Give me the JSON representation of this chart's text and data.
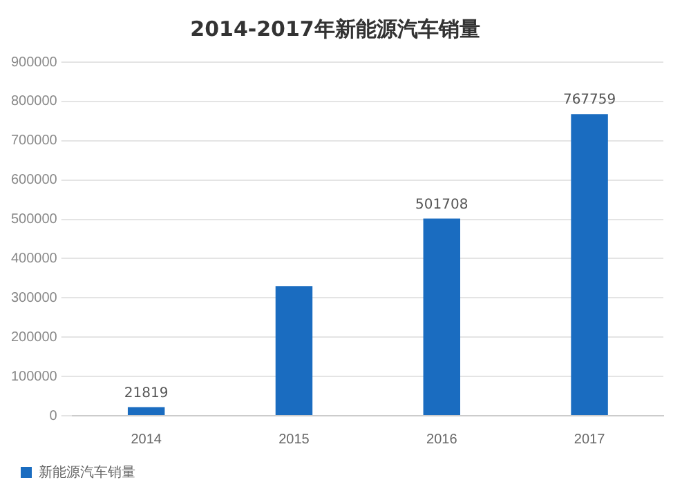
{
  "chart_data": {
    "type": "bar",
    "title": "2014-2017年新能源汽车销量",
    "categories": [
      "2014",
      "2015",
      "2016",
      "2017"
    ],
    "series": [
      {
        "name": "新能源汽车销量",
        "color": "#1a6cc0",
        "values": [
          21819,
          330000,
          501708,
          767759
        ],
        "value_labels": [
          "21819",
          null,
          "501708",
          "767759"
        ]
      }
    ],
    "ylim": [
      0,
      900000
    ],
    "yticks": [
      0,
      100000,
      200000,
      300000,
      400000,
      500000,
      600000,
      700000,
      800000,
      900000
    ],
    "grid": "y",
    "legend": "bottom"
  }
}
